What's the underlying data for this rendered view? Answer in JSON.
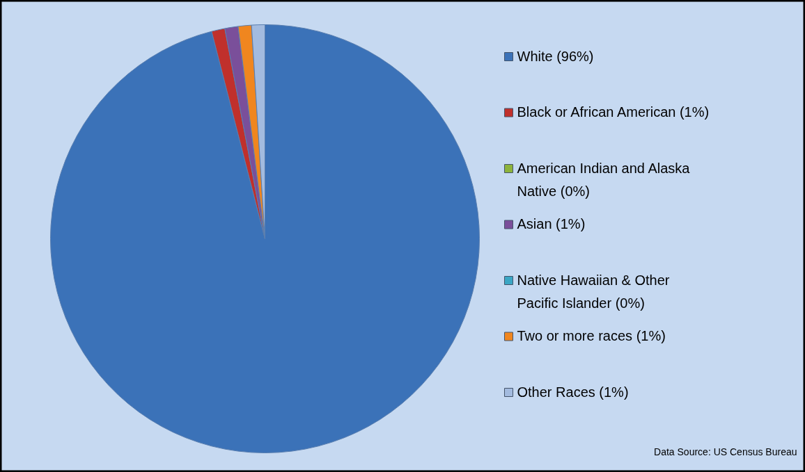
{
  "chart_data": {
    "type": "pie",
    "categories": [
      "White (96%)",
      "Black or African American (1%)",
      "American Indian and Alaska Native (0%)",
      "Asian (1%)",
      "Native Hawaiian & Other Pacific Islander (0%)",
      "Two or more races (1%)",
      "Other Races (1%)"
    ],
    "values": [
      96,
      1,
      0,
      1,
      0,
      1,
      1
    ],
    "colors": [
      "#3b72b8",
      "#c0302c",
      "#8db33c",
      "#7a4f9a",
      "#3aa6c4",
      "#f0861f",
      "#a3bbdf"
    ],
    "legend": "right",
    "annotations": [
      "Data Source: US Census Bureau"
    ]
  }
}
